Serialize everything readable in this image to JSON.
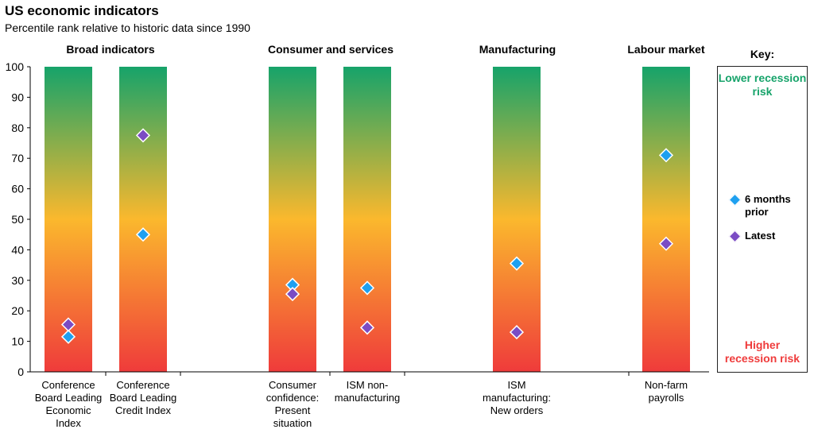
{
  "title": "US economic indicators",
  "subtitle": "Percentile rank relative to historic data since 1990",
  "key": {
    "title": "Key:",
    "lower": "Lower recession risk",
    "higher": "Higher recession risk",
    "six_months": "6 months prior",
    "latest": "Latest"
  },
  "colors": {
    "six_months": "#1ea0f0",
    "latest": "#7b4cc4",
    "gradient_top": "#16a36a",
    "gradient_mid": "#fbb82d",
    "gradient_bottom": "#ef3b3b"
  },
  "chart_data": {
    "type": "scatter",
    "ylim": [
      0,
      100
    ],
    "yticks": [
      0,
      10,
      20,
      30,
      40,
      50,
      60,
      70,
      80,
      90,
      100
    ],
    "groups": [
      {
        "label": "Broad indicators"
      },
      {
        "label": "Consumer and services"
      },
      {
        "label": "Manufacturing"
      },
      {
        "label": "Labour market"
      }
    ],
    "categories": [
      "Conference Board Leading Economic Index",
      "Conference Board Leading Credit Index",
      "Consumer confidence: Present situation",
      "ISM non-manufacturing",
      "ISM manufacturing: New orders",
      "Non-farm payrolls"
    ],
    "category_lines": [
      [
        "Conference",
        "Board Leading",
        "Economic",
        "Index"
      ],
      [
        "Conference",
        "Board Leading",
        "Credit Index"
      ],
      [
        "Consumer",
        "confidence:",
        "Present",
        "situation"
      ],
      [
        "ISM non-",
        "manufacturing"
      ],
      [
        "ISM",
        "manufacturing:",
        "New orders"
      ],
      [
        "Non-farm",
        "payrolls"
      ]
    ],
    "series": [
      {
        "name": "6 months prior",
        "values": [
          11.5,
          45,
          28.5,
          27.5,
          35.5,
          71
        ]
      },
      {
        "name": "Latest",
        "values": [
          15.5,
          77.5,
          25.5,
          14.5,
          13,
          42
        ]
      }
    ]
  }
}
